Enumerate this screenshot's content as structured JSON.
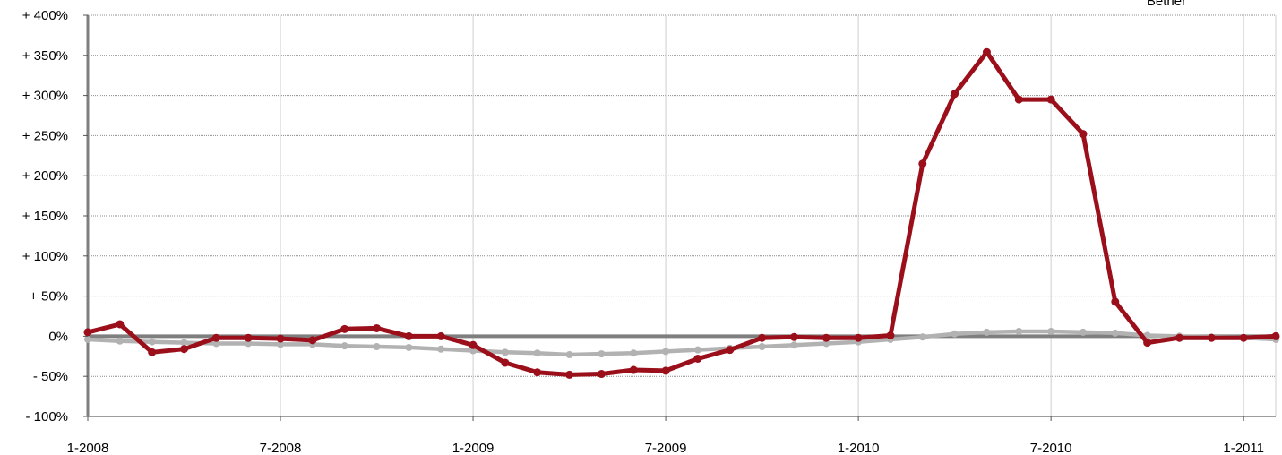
{
  "chart_data": {
    "type": "line",
    "title": "",
    "xlabel": "",
    "ylabel": "",
    "x_range": [
      "2008-01",
      "2011-02"
    ],
    "ylim": [
      -100,
      400
    ],
    "yticks": [
      400,
      350,
      300,
      250,
      200,
      150,
      100,
      50,
      0,
      -50,
      -100
    ],
    "ytick_labels": [
      "+ 400%",
      "+ 350%",
      "+ 300%",
      "+ 250%",
      "+ 200%",
      "+ 150%",
      "+ 100%",
      "+ 50%",
      "0%",
      "- 50%",
      "- 100%"
    ],
    "xticks": [
      "2008-01",
      "2008-07",
      "2009-01",
      "2009-07",
      "2010-01",
      "2010-07",
      "2011-01"
    ],
    "xtick_labels": [
      "1-2008",
      "7-2008",
      "1-2009",
      "7-2009",
      "1-2010",
      "7-2010",
      "1-2011"
    ],
    "grid": true,
    "legend": {
      "placement": "top-right",
      "entries": [
        "Bether"
      ]
    },
    "series": [
      {
        "name": "Bether",
        "color": "#9b0f1b",
        "x": [
          "2008-01",
          "2008-02",
          "2008-03",
          "2008-04",
          "2008-05",
          "2008-06",
          "2008-07",
          "2008-08",
          "2008-09",
          "2008-10",
          "2008-11",
          "2008-12",
          "2009-01",
          "2009-02",
          "2009-03",
          "2009-04",
          "2009-05",
          "2009-06",
          "2009-07",
          "2009-08",
          "2009-09",
          "2009-10",
          "2009-11",
          "2009-12",
          "2010-01",
          "2010-02",
          "2010-03",
          "2010-04",
          "2010-05",
          "2010-06",
          "2010-07",
          "2010-08",
          "2010-09",
          "2010-10",
          "2010-11",
          "2010-12",
          "2011-01",
          "2011-02"
        ],
        "values": [
          5,
          15,
          -20,
          -16,
          -2,
          -2,
          -3,
          -5,
          9,
          10,
          0,
          0,
          -11,
          -33,
          -45,
          -48,
          -47,
          -42,
          -43,
          -28,
          -17,
          -2,
          -1,
          -2,
          -2,
          1,
          215,
          302,
          354,
          295,
          295,
          252,
          43,
          -8,
          -2,
          -2,
          -2,
          0
        ]
      },
      {
        "name": "",
        "color": "#b2b2b2",
        "x": [
          "2008-01",
          "2008-02",
          "2008-03",
          "2008-04",
          "2008-05",
          "2008-06",
          "2008-07",
          "2008-08",
          "2008-09",
          "2008-10",
          "2008-11",
          "2008-12",
          "2009-01",
          "2009-02",
          "2009-03",
          "2009-04",
          "2009-05",
          "2009-06",
          "2009-07",
          "2009-08",
          "2009-09",
          "2009-10",
          "2009-11",
          "2009-12",
          "2010-01",
          "2010-02",
          "2010-03",
          "2010-04",
          "2010-05",
          "2010-06",
          "2010-07",
          "2010-08",
          "2010-09",
          "2010-10",
          "2010-11",
          "2010-12",
          "2011-01",
          "2011-02"
        ],
        "values": [
          -4,
          -6,
          -7,
          -8,
          -9,
          -9,
          -10,
          -10,
          -12,
          -13,
          -14,
          -16,
          -18,
          -20,
          -21,
          -23,
          -22,
          -21,
          -19,
          -17,
          -15,
          -13,
          -11,
          -9,
          -7,
          -4,
          -1,
          3,
          5,
          6,
          6,
          5,
          4,
          1,
          0,
          -1,
          -2,
          -4
        ]
      }
    ],
    "zero_line_color": "#7f7f7f"
  }
}
